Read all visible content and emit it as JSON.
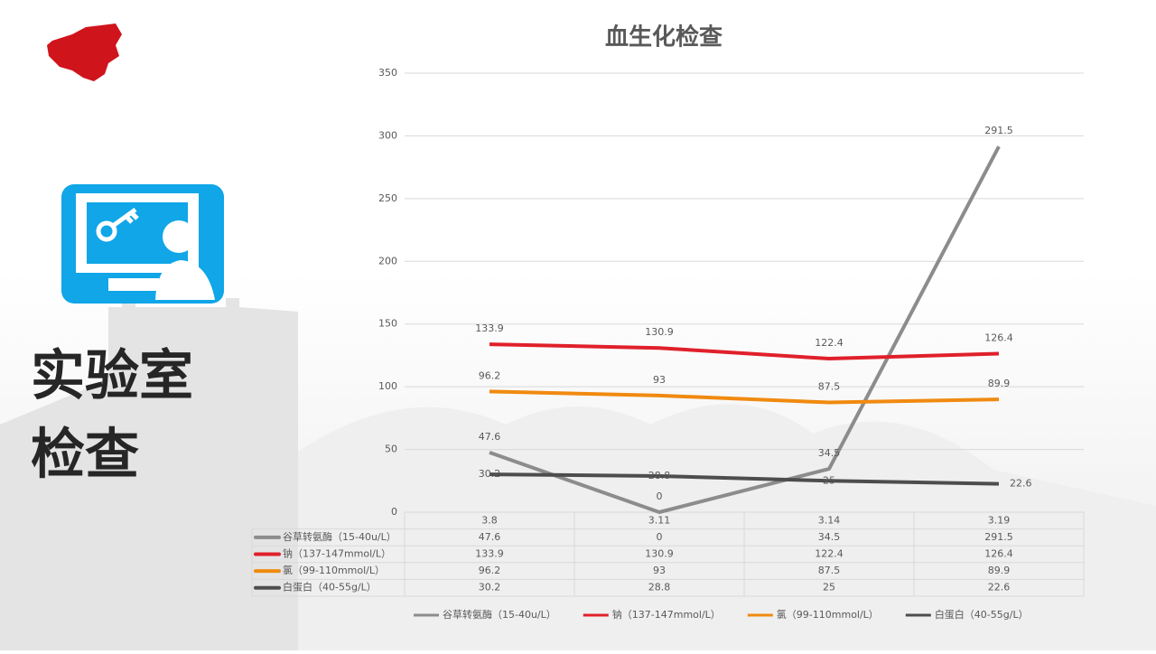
{
  "slide": {
    "heading": [
      "实验室",
      "检查"
    ]
  },
  "chart_data": {
    "type": "line",
    "title": "血生化检查",
    "categories": [
      "3.8",
      "3.11",
      "3.14",
      "3.19"
    ],
    "series": [
      {
        "name": "谷草转氨酶（15-40u/L）",
        "color": "#8c8c8c",
        "values": [
          47.6,
          0,
          34.5,
          291.5
        ]
      },
      {
        "name": "钠（137-147mmol/L）",
        "color": "#e0202a",
        "values": [
          133.9,
          130.9,
          122.4,
          126.4
        ]
      },
      {
        "name": "氯（99-110mmol/L）",
        "color": "#f08a10",
        "values": [
          96.2,
          93,
          87.5,
          89.9
        ]
      },
      {
        "name": "白蛋白（40-55g/L）",
        "color": "#4d4d4d",
        "values": [
          30.2,
          28.8,
          25,
          22.6
        ]
      }
    ],
    "ylim": [
      0,
      350
    ],
    "yticks": [
      0,
      50,
      100,
      150,
      200,
      250,
      300,
      350
    ],
    "grid": true,
    "legend": "bottom",
    "data_table": true
  }
}
